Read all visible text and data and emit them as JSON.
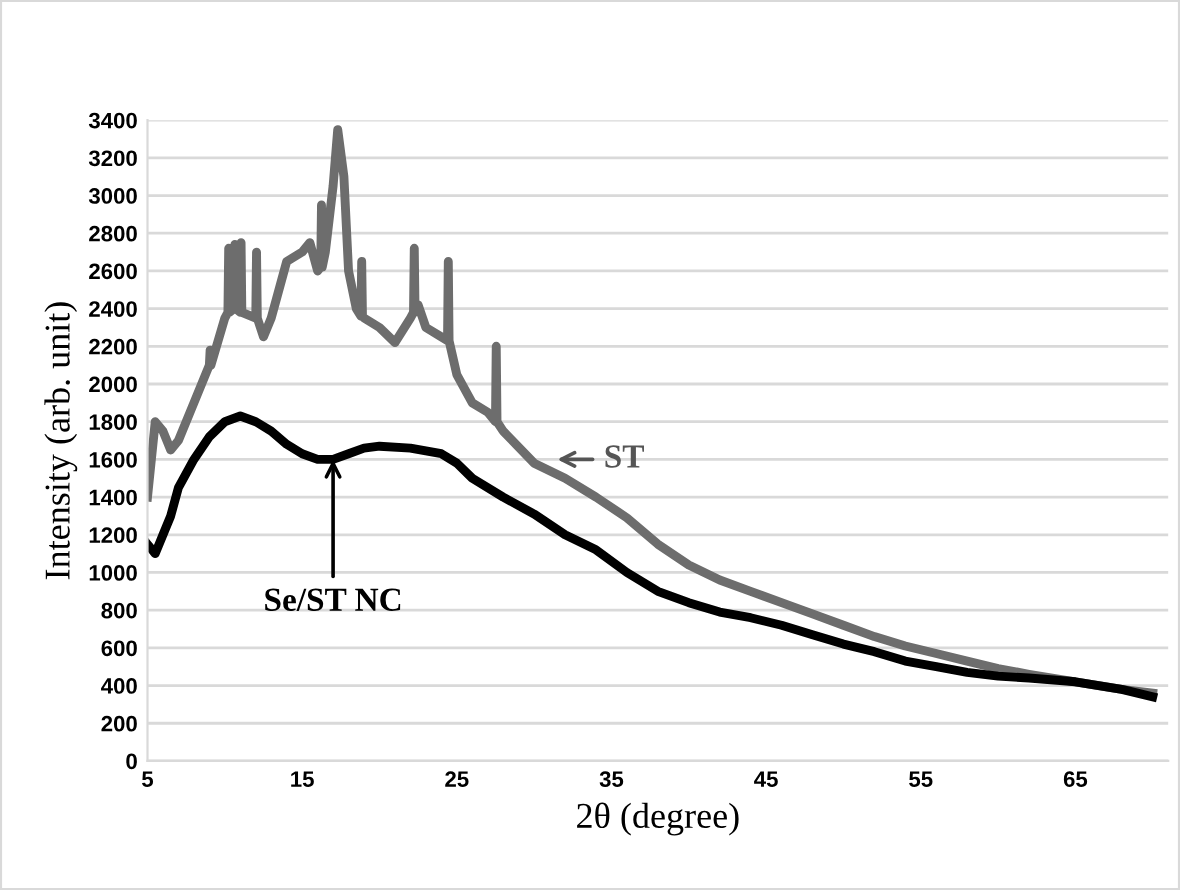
{
  "chart_data": {
    "type": "line",
    "xlabel": "2θ (degree)",
    "ylabel": "Intensity (arb. unit)",
    "xlim": [
      5,
      71
    ],
    "xticks": [
      5,
      15,
      25,
      35,
      45,
      55,
      65
    ],
    "ylim": [
      0,
      3400
    ],
    "yticks": [
      0,
      200,
      400,
      600,
      800,
      1000,
      1200,
      1400,
      1600,
      1800,
      2000,
      2200,
      2400,
      2600,
      2800,
      3000,
      3200,
      3400
    ],
    "grid": "y",
    "legend": false,
    "marker": "none",
    "line_style": "solid",
    "series": [
      {
        "color": "#6d6d6d",
        "x": [
          5,
          5.5,
          6,
          6.5,
          7,
          8,
          9,
          9.05,
          9.1,
          10,
          10.2,
          10.25,
          10.3,
          10.6,
          10.65,
          10.7,
          11,
          11.05,
          11.1,
          12,
          12.05,
          12.1,
          12.5,
          13,
          14,
          15,
          15.5,
          16,
          16.2,
          16.25,
          16.3,
          16.5,
          17,
          17.3,
          17.7,
          18,
          18.5,
          18.8,
          18.85,
          18.9,
          19,
          20,
          21,
          22,
          22.2,
          22.25,
          22.3,
          22.5,
          23,
          24,
          24.4,
          24.45,
          24.5,
          25,
          26,
          27,
          27.5,
          27.55,
          27.6,
          28,
          30,
          32,
          34,
          36,
          38,
          40,
          42,
          44,
          46,
          48,
          50,
          52,
          54,
          56,
          58,
          60,
          62,
          65,
          68,
          70
        ],
        "values": [
          1400,
          1800,
          1750,
          1650,
          1700,
          1900,
          2100,
          2180,
          2100,
          2350,
          2380,
          2720,
          2380,
          2400,
          2740,
          2400,
          2380,
          2750,
          2380,
          2350,
          2700,
          2350,
          2250,
          2350,
          2650,
          2700,
          2750,
          2600,
          2620,
          2950,
          2620,
          2700,
          3050,
          3350,
          3100,
          2600,
          2400,
          2360,
          2650,
          2360,
          2350,
          2300,
          2220,
          2350,
          2380,
          2720,
          2380,
          2420,
          2300,
          2250,
          2230,
          2650,
          2230,
          2050,
          1900,
          1850,
          1800,
          2200,
          1800,
          1750,
          1580,
          1500,
          1400,
          1290,
          1150,
          1040,
          960,
          900,
          840,
          780,
          720,
          660,
          610,
          570,
          530,
          490,
          460,
          420,
          380,
          360
        ]
      },
      {
        "color": "#000000",
        "x": [
          5,
          5.5,
          6,
          6.5,
          7,
          8,
          9,
          10,
          11,
          12,
          13,
          14,
          15,
          16,
          17,
          18,
          19,
          20,
          22,
          24,
          25,
          26,
          28,
          30,
          32,
          34,
          36,
          38,
          40,
          42,
          44,
          46,
          48,
          50,
          52,
          54,
          56,
          58,
          60,
          62,
          65,
          68,
          70
        ],
        "values": [
          1150,
          1100,
          1200,
          1300,
          1450,
          1600,
          1720,
          1800,
          1830,
          1800,
          1750,
          1680,
          1630,
          1600,
          1600,
          1630,
          1660,
          1670,
          1660,
          1630,
          1580,
          1500,
          1400,
          1310,
          1200,
          1120,
          1000,
          900,
          840,
          790,
          760,
          720,
          670,
          620,
          580,
          530,
          500,
          470,
          450,
          440,
          420,
          380,
          340
        ]
      }
    ],
    "annotations": [
      {
        "text": "ST",
        "x": 31.5,
        "y": 1600
      },
      {
        "text": "Se/ST NC",
        "x": 17,
        "y": 1600
      }
    ]
  }
}
